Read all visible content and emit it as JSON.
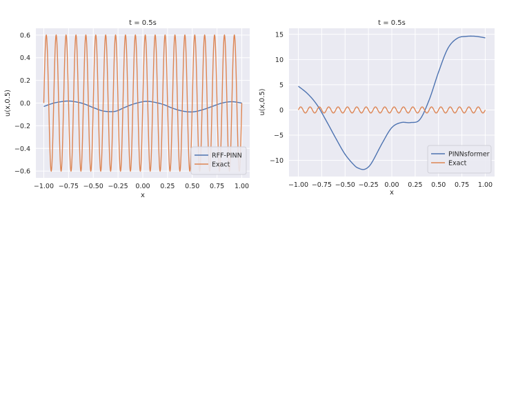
{
  "chart_data": [
    {
      "type": "line",
      "title": "t = 0.5s",
      "xlabel": "x",
      "ylabel": "u(x,0.5)",
      "xlim": [
        -1.08,
        1.08
      ],
      "ylim": [
        -0.66,
        0.66
      ],
      "xticks": [
        "−1.00",
        "−0.75",
        "−0.50",
        "−0.25",
        "0.00",
        "0.25",
        "0.50",
        "0.75",
        "1.00"
      ],
      "yticks": [
        "−0.6",
        "−0.4",
        "−0.2",
        "0.0",
        "0.2",
        "0.4",
        "0.6"
      ],
      "xtick_values": [
        -1.0,
        -0.75,
        -0.5,
        -0.25,
        0.0,
        0.25,
        0.5,
        0.75,
        1.0
      ],
      "ytick_values": [
        -0.6,
        -0.4,
        -0.2,
        0.0,
        0.2,
        0.4,
        0.6
      ],
      "grid": true,
      "legend_position": "lower-right",
      "series": [
        {
          "name": "RFF-PINN",
          "color": "#4c72b0",
          "x": [
            -1.0,
            -0.9,
            -0.8,
            -0.75,
            -0.7,
            -0.6,
            -0.5,
            -0.4,
            -0.3,
            -0.25,
            -0.2,
            -0.1,
            0.0,
            0.05,
            0.1,
            0.2,
            0.3,
            0.4,
            0.5,
            0.6,
            0.7,
            0.8,
            0.9,
            1.0
          ],
          "y": [
            -0.03,
            0.0,
            0.015,
            0.018,
            0.014,
            -0.005,
            -0.04,
            -0.07,
            -0.075,
            -0.065,
            -0.045,
            -0.01,
            0.012,
            0.015,
            0.01,
            -0.01,
            -0.045,
            -0.07,
            -0.078,
            -0.06,
            -0.03,
            0.0,
            0.012,
            0.0
          ]
        },
        {
          "name": "Exact",
          "color": "#dd8452",
          "function": "0.6*sin(20*pi*x)",
          "x_range": [
            -1.0,
            1.0
          ],
          "samples": 2000
        }
      ]
    },
    {
      "type": "line",
      "title": "t = 0.5s",
      "xlabel": "x",
      "ylabel": "u(x,0.5)",
      "xlim": [
        -1.1,
        1.1
      ],
      "ylim": [
        -13.2,
        16.2
      ],
      "xticks": [
        "−1.00",
        "−0.75",
        "−0.50",
        "−0.25",
        "0.00",
        "0.25",
        "0.50",
        "0.75",
        "1.00"
      ],
      "yticks": [
        "−10",
        "−5",
        "0",
        "5",
        "10",
        "15"
      ],
      "xtick_values": [
        -1.0,
        -0.75,
        -0.5,
        -0.25,
        0.0,
        0.25,
        0.5,
        0.75,
        1.0
      ],
      "ytick_values": [
        -10,
        -5,
        0,
        5,
        10,
        15
      ],
      "grid": true,
      "legend_position": "lower-right",
      "series": [
        {
          "name": "PINNsformer",
          "color": "#4c72b0",
          "x": [
            -1.0,
            -0.9,
            -0.8,
            -0.7,
            -0.6,
            -0.5,
            -0.4,
            -0.35,
            -0.3,
            -0.25,
            -0.2,
            -0.1,
            0.0,
            0.1,
            0.2,
            0.3,
            0.4,
            0.5,
            0.6,
            0.7,
            0.8,
            0.9,
            1.0
          ],
          "y": [
            4.7,
            3.2,
            1.0,
            -2.2,
            -5.6,
            -8.8,
            -11.0,
            -11.6,
            -11.8,
            -11.3,
            -10.0,
            -6.5,
            -3.5,
            -2.5,
            -2.5,
            -1.9,
            2.0,
            7.5,
            12.2,
            14.2,
            14.6,
            14.6,
            14.3
          ]
        },
        {
          "name": "Exact",
          "color": "#dd8452",
          "function": "0.6*sin(20*pi*x)",
          "x_range": [
            -1.0,
            1.0
          ],
          "samples": 2000
        }
      ]
    }
  ]
}
